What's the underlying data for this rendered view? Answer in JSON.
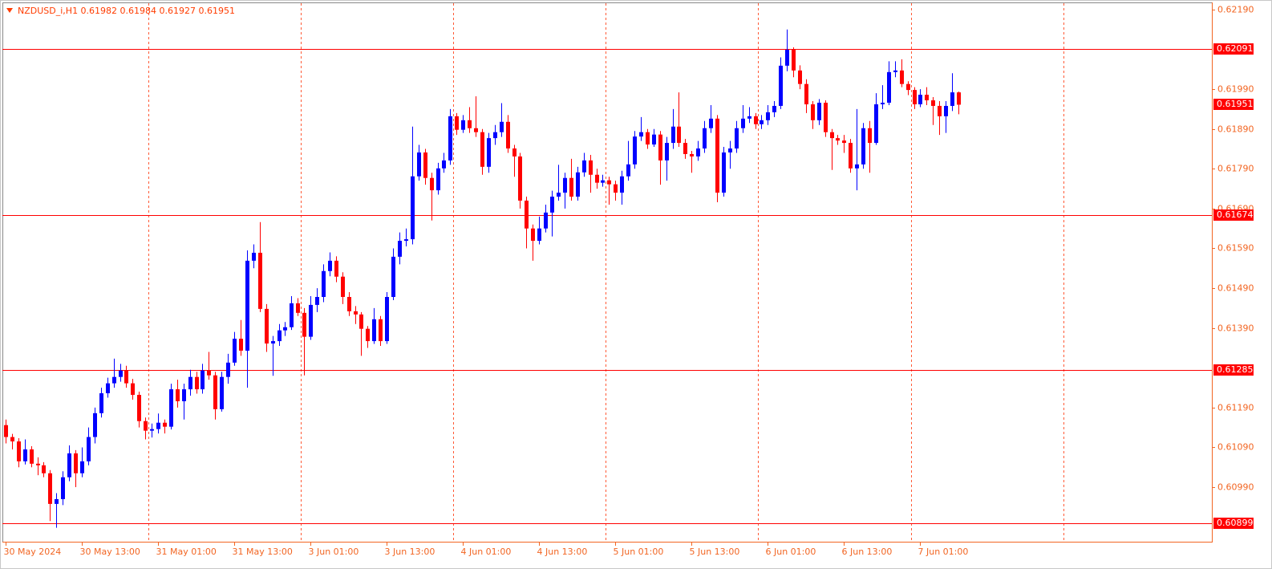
{
  "chart_data": {
    "type": "candlestick",
    "title": "NZDUSD_i,H1  0.61982 0.61984 0.61927 0.61951",
    "categories": [
      "30 May 2024",
      null,
      null,
      null,
      null,
      null,
      null,
      null,
      null,
      null,
      null,
      null,
      "30 May 13:00",
      null,
      null,
      null,
      null,
      null,
      null,
      null,
      null,
      null,
      null,
      null,
      "31 May 01:00",
      null,
      null,
      null,
      null,
      null,
      null,
      null,
      null,
      null,
      null,
      null,
      "31 May 13:00",
      null,
      null,
      null,
      null,
      null,
      null,
      null,
      null,
      null,
      null,
      null,
      "3 Jun 01:00",
      null,
      null,
      null,
      null,
      null,
      null,
      null,
      null,
      null,
      null,
      null,
      "3 Jun 13:00",
      null,
      null,
      null,
      null,
      null,
      null,
      null,
      null,
      null,
      null,
      null,
      "4 Jun 01:00",
      null,
      null,
      null,
      null,
      null,
      null,
      null,
      null,
      null,
      null,
      null,
      "4 Jun 13:00",
      null,
      null,
      null,
      null,
      null,
      null,
      null,
      null,
      null,
      null,
      null,
      "5 Jun 01:00",
      null,
      null,
      null,
      null,
      null,
      null,
      null,
      null,
      null,
      null,
      null,
      "5 Jun 13:00",
      null,
      null,
      null,
      null,
      null,
      null,
      null,
      null,
      null,
      null,
      null,
      "6 Jun 01:00",
      null,
      null,
      null,
      null,
      null,
      null,
      null,
      null,
      null,
      null,
      null,
      "6 Jun 13:00",
      null,
      null,
      null,
      null,
      null,
      null,
      null,
      null,
      null,
      null,
      null,
      "7 Jun 01:00",
      null,
      null,
      null,
      null,
      null,
      null
    ],
    "open": [
      0.61146,
      0.61116,
      0.61105,
      0.61055,
      0.61085,
      0.61049,
      0.61045,
      0.61025,
      0.60948,
      0.6096,
      0.61015,
      0.61075,
      0.61025,
      0.61055,
      0.61116,
      0.61176,
      0.61226,
      0.61251,
      0.61267,
      0.61283,
      0.61251,
      0.61222,
      0.61156,
      0.61132,
      0.61136,
      0.61152,
      0.61142,
      0.61236,
      0.61206,
      0.61236,
      0.61267,
      0.61236,
      0.61283,
      0.61271,
      0.61186,
      0.61267,
      0.61303,
      0.61363,
      0.61333,
      0.61559,
      0.61579,
      0.61438,
      0.61351,
      0.61357,
      0.61384,
      0.61392,
      0.61452,
      0.61428,
      0.61368,
      0.61448,
      0.61468,
      0.61533,
      0.61559,
      0.61519,
      0.61468,
      0.61432,
      0.61424,
      0.61388,
      0.61357,
      0.61412,
      0.61357,
      0.61468,
      0.61569,
      0.61609,
      0.61613,
      0.61771,
      0.61831,
      0.61767,
      0.61736,
      0.61791,
      0.61811,
      0.61922,
      0.61888,
      0.61912,
      0.61892,
      0.61882,
      0.61795,
      0.61867,
      0.61882,
      0.61908,
      0.61841,
      0.61821,
      0.6171,
      0.6164,
      0.61609,
      0.6164,
      0.6168,
      0.6172,
      0.6173,
      0.61767,
      0.6172,
      0.61781,
      0.61811,
      0.61775,
      0.61755,
      0.61761,
      0.61751,
      0.6173,
      0.61771,
      0.61801,
      0.61871,
      0.61882,
      0.61851,
      0.61876,
      0.61811,
      0.61855,
      0.61896,
      0.61855,
      0.61827,
      0.61821,
      0.61841,
      0.61892,
      0.61916,
      0.6173,
      0.61831,
      0.61841,
      0.61892,
      0.61916,
      0.61922,
      0.61902,
      0.61912,
      0.61932,
      0.61948,
      0.62049,
      0.62089,
      0.62037,
      0.62003,
      0.61952,
      0.61912,
      0.61956,
      0.61882,
      0.61867,
      0.61861,
      0.61855,
      0.61791,
      0.61801,
      0.61892,
      0.61855,
      0.61952,
      0.61956,
      0.62033,
      0.62037,
      0.62003,
      0.61988,
      0.61952,
      0.61976,
      0.61962,
      0.61948,
      0.61922,
      0.61948,
      0.61982
    ],
    "high": [
      0.6116,
      0.61124,
      0.61113,
      0.6111,
      0.61093,
      0.61065,
      0.61053,
      0.61033,
      0.60975,
      0.6103,
      0.61095,
      0.61083,
      0.6109,
      0.6114,
      0.6119,
      0.6124,
      0.61265,
      0.61313,
      0.613,
      0.61295,
      0.61262,
      0.6123,
      0.61165,
      0.6115,
      0.61175,
      0.6116,
      0.6125,
      0.6126,
      0.6125,
      0.61285,
      0.6128,
      0.613,
      0.6133,
      0.6128,
      0.6128,
      0.61325,
      0.6138,
      0.6141,
      0.61585,
      0.616,
      0.61656,
      0.6145,
      0.6137,
      0.614,
      0.61405,
      0.6147,
      0.61465,
      0.6144,
      0.6147,
      0.6149,
      0.6155,
      0.6158,
      0.6157,
      0.6153,
      0.6148,
      0.61445,
      0.6143,
      0.61395,
      0.6144,
      0.6142,
      0.6148,
      0.6159,
      0.6163,
      0.6164,
      0.61896,
      0.6185,
      0.6184,
      0.6178,
      0.61805,
      0.6183,
      0.6194,
      0.6193,
      0.61925,
      0.61945,
      0.61972,
      0.6189,
      0.6188,
      0.619,
      0.61955,
      0.61925,
      0.6185,
      0.6183,
      0.6172,
      0.6165,
      0.6167,
      0.617,
      0.61735,
      0.618,
      0.6178,
      0.61815,
      0.61795,
      0.6183,
      0.61825,
      0.6179,
      0.61775,
      0.6177,
      0.6176,
      0.61785,
      0.6186,
      0.61885,
      0.6192,
      0.6189,
      0.6189,
      0.61885,
      0.6187,
      0.6194,
      0.61982,
      0.61865,
      0.61835,
      0.6186,
      0.6191,
      0.6195,
      0.61925,
      0.61845,
      0.6186,
      0.6191,
      0.6195,
      0.61945,
      0.6193,
      0.61925,
      0.6195,
      0.6196,
      0.6207,
      0.6214,
      0.62095,
      0.6205,
      0.62015,
      0.6196,
      0.61965,
      0.61962,
      0.6189,
      0.61875,
      0.61875,
      0.61865,
      0.6194,
      0.61905,
      0.6191,
      0.6198,
      0.62,
      0.6206,
      0.6206,
      0.62065,
      0.6201,
      0.61995,
      0.6199,
      0.61995,
      0.6197,
      0.6196,
      0.6196,
      0.6203,
      0.61984
    ],
    "low": [
      0.611,
      0.61085,
      0.6104,
      0.61047,
      0.6104,
      0.6102,
      0.61015,
      0.60905,
      0.60888,
      0.60945,
      0.61005,
      0.6099,
      0.61015,
      0.61045,
      0.611,
      0.61165,
      0.61215,
      0.6124,
      0.61255,
      0.6124,
      0.6121,
      0.6114,
      0.6111,
      0.61115,
      0.61125,
      0.61125,
      0.61135,
      0.6119,
      0.6116,
      0.6122,
      0.61225,
      0.61225,
      0.6126,
      0.6116,
      0.6118,
      0.6125,
      0.61295,
      0.6132,
      0.6124,
      0.6154,
      0.6143,
      0.6133,
      0.6127,
      0.61345,
      0.6137,
      0.61385,
      0.6142,
      0.61271,
      0.6136,
      0.6143,
      0.61455,
      0.6152,
      0.61505,
      0.6145,
      0.6142,
      0.614,
      0.6132,
      0.6134,
      0.6135,
      0.61345,
      0.6135,
      0.6146,
      0.6155,
      0.61595,
      0.616,
      0.6176,
      0.6175,
      0.6166,
      0.61725,
      0.6178,
      0.618,
      0.61875,
      0.6188,
      0.6188,
      0.6187,
      0.61775,
      0.6178,
      0.6185,
      0.6187,
      0.6183,
      0.6177,
      0.6169,
      0.6159,
      0.61559,
      0.616,
      0.6163,
      0.6162,
      0.6171,
      0.6169,
      0.6171,
      0.6171,
      0.6177,
      0.6173,
      0.6174,
      0.61745,
      0.617,
      0.6171,
      0.617,
      0.6176,
      0.6179,
      0.6186,
      0.6184,
      0.61845,
      0.6175,
      0.6176,
      0.6184,
      0.61845,
      0.61815,
      0.6178,
      0.6181,
      0.6183,
      0.6188,
      0.61706,
      0.6172,
      0.6179,
      0.6183,
      0.6188,
      0.61905,
      0.6189,
      0.6189,
      0.619,
      0.6192,
      0.6194,
      0.62035,
      0.6202,
      0.6199,
      0.6193,
      0.6189,
      0.619,
      0.6187,
      0.61787,
      0.6185,
      0.6183,
      0.6178,
      0.61736,
      0.6179,
      0.6178,
      0.6185,
      0.6194,
      0.6195,
      0.6202,
      0.61995,
      0.61975,
      0.6194,
      0.61945,
      0.6195,
      0.619,
      0.61875,
      0.6188,
      0.61935,
      0.61927
    ],
    "close": [
      0.61116,
      0.61105,
      0.61055,
      0.61085,
      0.61049,
      0.61045,
      0.61025,
      0.60948,
      0.6096,
      0.61015,
      0.61075,
      0.61025,
      0.61055,
      0.61116,
      0.61176,
      0.61226,
      0.61251,
      0.61267,
      0.61283,
      0.61251,
      0.61222,
      0.61156,
      0.61132,
      0.61136,
      0.61152,
      0.61142,
      0.61236,
      0.61206,
      0.61236,
      0.61267,
      0.61236,
      0.61283,
      0.61271,
      0.61186,
      0.61267,
      0.61303,
      0.61363,
      0.61333,
      0.61559,
      0.61579,
      0.61438,
      0.61351,
      0.61357,
      0.61384,
      0.61392,
      0.61452,
      0.61428,
      0.61368,
      0.61448,
      0.61468,
      0.61533,
      0.61559,
      0.61519,
      0.61468,
      0.61432,
      0.61424,
      0.61388,
      0.61357,
      0.61412,
      0.61357,
      0.61468,
      0.61569,
      0.61609,
      0.61613,
      0.61771,
      0.61831,
      0.61767,
      0.61736,
      0.61791,
      0.61811,
      0.61922,
      0.61888,
      0.61912,
      0.61892,
      0.61882,
      0.61795,
      0.61867,
      0.61882,
      0.61908,
      0.61841,
      0.61821,
      0.6171,
      0.6164,
      0.61609,
      0.6164,
      0.6168,
      0.6172,
      0.6173,
      0.61767,
      0.6172,
      0.61781,
      0.61811,
      0.61775,
      0.61755,
      0.61761,
      0.61751,
      0.6173,
      0.61771,
      0.61801,
      0.61871,
      0.61882,
      0.61851,
      0.61876,
      0.61811,
      0.61855,
      0.61896,
      0.61855,
      0.61827,
      0.61821,
      0.61841,
      0.61892,
      0.61916,
      0.6173,
      0.61831,
      0.61841,
      0.61892,
      0.61916,
      0.61922,
      0.61902,
      0.61912,
      0.61932,
      0.61948,
      0.62049,
      0.62089,
      0.62037,
      0.62003,
      0.61952,
      0.61912,
      0.61956,
      0.61882,
      0.61867,
      0.61861,
      0.61855,
      0.61791,
      0.61801,
      0.61892,
      0.61855,
      0.61952,
      0.61956,
      0.62033,
      0.62037,
      0.62003,
      0.61988,
      0.61952,
      0.61976,
      0.61962,
      0.61948,
      0.61922,
      0.61948,
      0.61982,
      0.61951
    ],
    "up_color": "#0000ff",
    "down_color": "#ff0000",
    "ylim": [
      0.60853,
      0.62206
    ],
    "yticks": [
      {
        "value": 0.6219,
        "label": "0.62190"
      },
      {
        "value": 0.6199,
        "label": "0.61990"
      },
      {
        "value": 0.6189,
        "label": "0.61890"
      },
      {
        "value": 0.6179,
        "label": "0.61790"
      },
      {
        "value": 0.6169,
        "label": "0.61690"
      },
      {
        "value": 0.6159,
        "label": "0.61590"
      },
      {
        "value": 0.6149,
        "label": "0.61490"
      },
      {
        "value": 0.6139,
        "label": "0.61390"
      },
      {
        "value": 0.6119,
        "label": "0.61190"
      },
      {
        "value": 0.6109,
        "label": "0.61090"
      },
      {
        "value": 0.6099,
        "label": "0.60990"
      }
    ],
    "price_lines": [
      0.62091,
      0.61674,
      0.61285,
      0.60899
    ],
    "line_color": "#ff0000",
    "bid": 0.61951,
    "period_separators": true
  }
}
